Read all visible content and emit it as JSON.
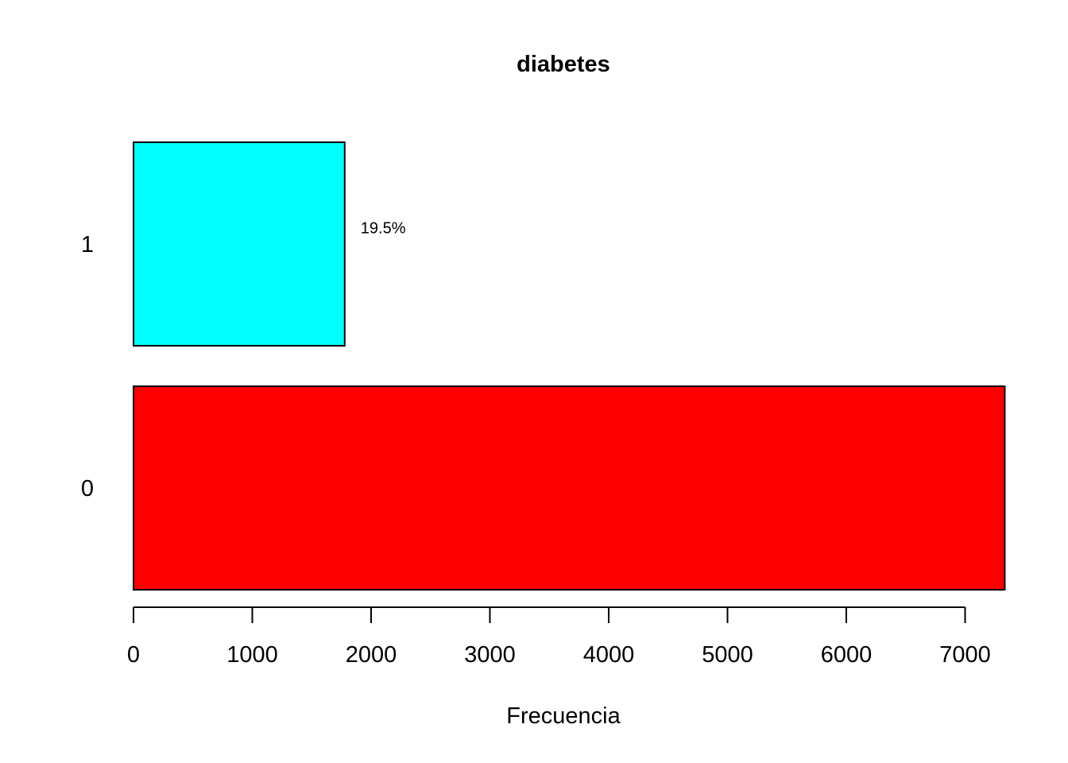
{
  "chart_data": {
    "type": "bar",
    "orientation": "horizontal",
    "title": "diabetes",
    "xlabel": "Frecuencia",
    "ylabel": "",
    "categories": [
      "0",
      "1"
    ],
    "values": [
      7334,
      1778
    ],
    "colors": [
      "#FF0000",
      "#00FFFF"
    ],
    "bar_labels": [
      "",
      "19.5%"
    ],
    "xlim": [
      0,
      7334
    ],
    "xticks": [
      0,
      1000,
      2000,
      3000,
      4000,
      5000,
      6000,
      7000
    ],
    "grid": false,
    "legend": "none"
  }
}
